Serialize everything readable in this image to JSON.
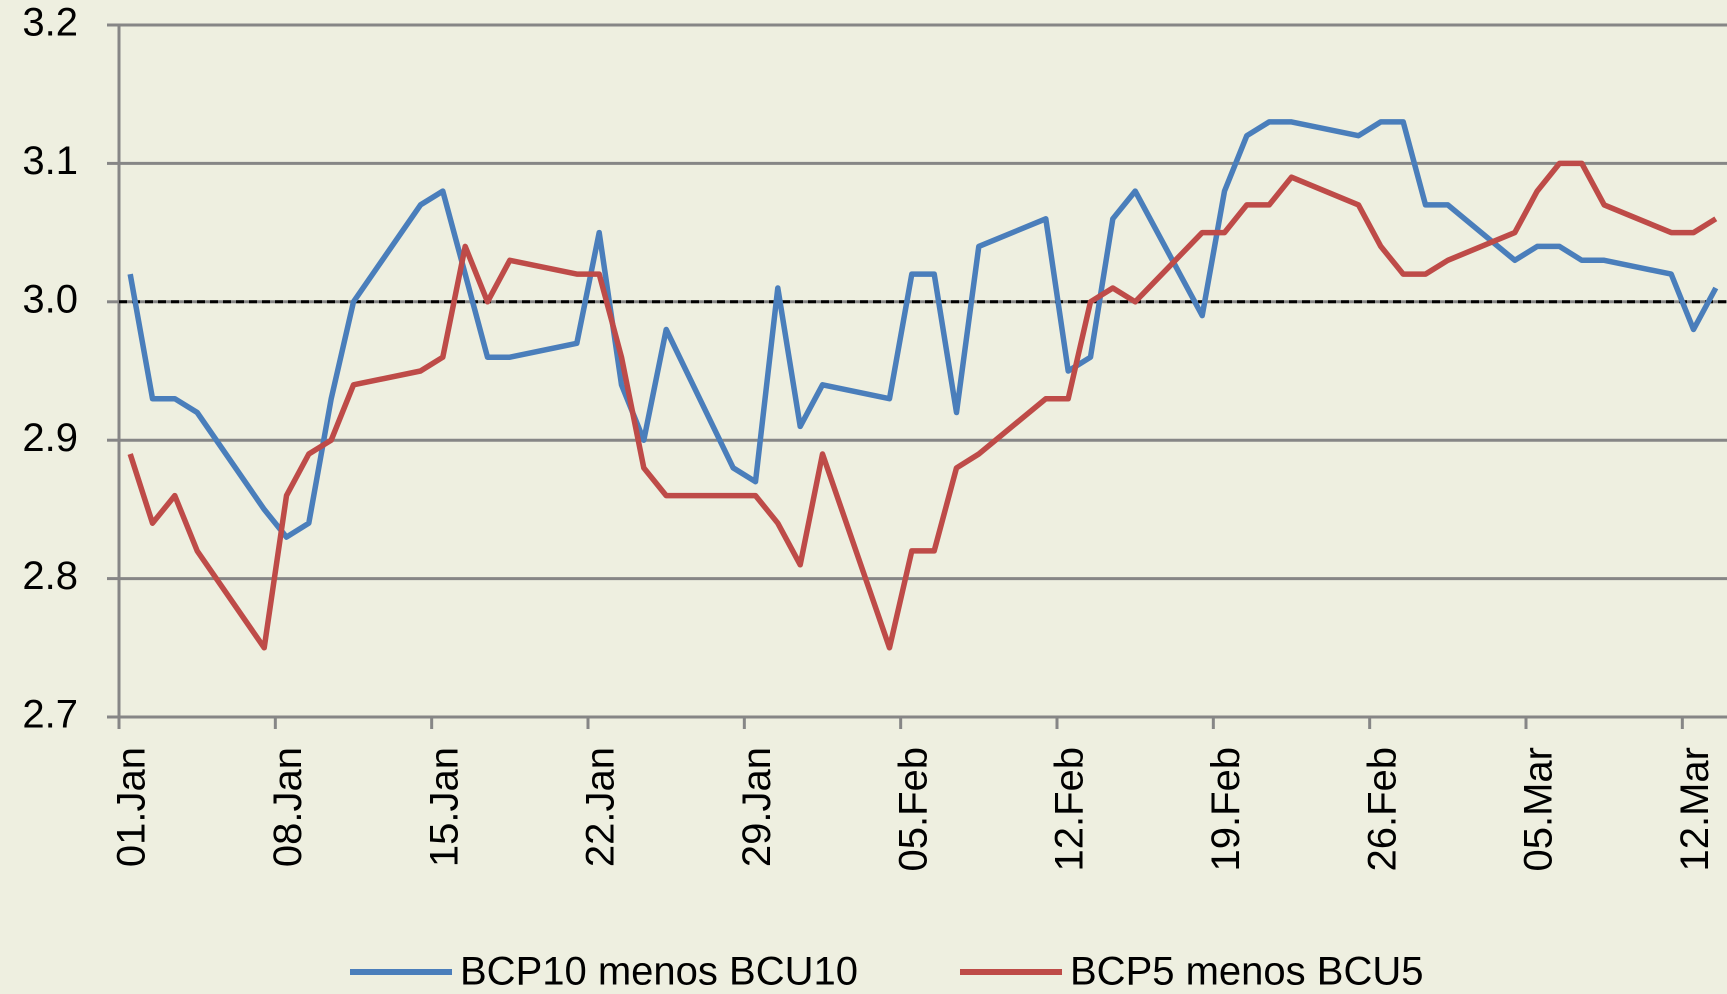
{
  "chart_data": {
    "type": "line",
    "x": [
      "01.Jan",
      "02.Jan",
      "03.Jan",
      "04.Jan",
      "07.Jan",
      "08.Jan",
      "09.Jan",
      "10.Jan",
      "11.Jan",
      "14.Jan",
      "15.Jan",
      "16.Jan",
      "17.Jan",
      "18.Jan",
      "21.Jan",
      "22.Jan",
      "23.Jan",
      "24.Jan",
      "25.Jan",
      "28.Jan",
      "29.Jan",
      "30.Jan",
      "31.Jan",
      "01.Feb",
      "04.Feb",
      "05.Feb",
      "06.Feb",
      "07.Feb",
      "08.Feb",
      "11.Feb",
      "12.Feb",
      "13.Feb",
      "14.Feb",
      "15.Feb",
      "18.Feb",
      "19.Feb",
      "20.Feb",
      "21.Feb",
      "22.Feb",
      "25.Feb",
      "26.Feb",
      "27.Feb",
      "28.Feb",
      "01.Mar",
      "04.Mar",
      "05.Mar",
      "06.Mar",
      "07.Mar",
      "08.Mar",
      "11.Mar",
      "12.Mar",
      "13.Mar"
    ],
    "series": [
      {
        "name": "BCP10 menos BCU10",
        "color": "#4a7ebb",
        "values": [
          3.02,
          2.93,
          2.93,
          2.92,
          2.85,
          2.83,
          2.84,
          2.93,
          3.0,
          3.07,
          3.08,
          3.02,
          2.96,
          2.96,
          2.97,
          3.05,
          2.94,
          2.9,
          2.98,
          2.88,
          2.87,
          3.01,
          2.91,
          2.94,
          2.93,
          3.02,
          3.02,
          2.92,
          3.04,
          3.06,
          2.95,
          2.96,
          3.06,
          3.08,
          2.99,
          3.08,
          3.12,
          3.13,
          3.13,
          3.12,
          3.13,
          3.13,
          3.07,
          3.07,
          3.03,
          3.04,
          3.04,
          3.03,
          3.03,
          3.02,
          2.98,
          3.01
        ]
      },
      {
        "name": "BCP5 menos BCU5",
        "color": "#be4b48",
        "values": [
          2.89,
          2.84,
          2.86,
          2.82,
          2.75,
          2.86,
          2.89,
          2.9,
          2.94,
          2.95,
          2.96,
          3.04,
          3.0,
          3.03,
          3.02,
          3.02,
          2.96,
          2.88,
          2.86,
          2.86,
          2.86,
          2.84,
          2.81,
          2.89,
          2.75,
          2.82,
          2.82,
          2.88,
          2.89,
          2.93,
          2.93,
          3.0,
          3.01,
          3.0,
          3.05,
          3.05,
          3.07,
          3.07,
          3.09,
          3.07,
          3.04,
          3.02,
          3.02,
          3.03,
          3.05,
          3.08,
          3.1,
          3.1,
          3.07,
          3.05,
          3.05,
          3.06
        ]
      }
    ],
    "xlim": [
      "01.Jan",
      "13.Mar"
    ],
    "xticks": [
      "01.Jan",
      "08.Jan",
      "15.Jan",
      "22.Jan",
      "29.Jan",
      "05.Feb",
      "12.Feb",
      "19.Feb",
      "26.Feb",
      "05.Mar",
      "12.Mar"
    ],
    "ylim": [
      2.7,
      3.2
    ],
    "yticks": [
      2.7,
      2.8,
      2.9,
      {
        "value": 3,
        "label": "3.0"
      },
      3.1,
      3.2
    ],
    "grid": true,
    "reference_line": 3,
    "legend": "bottom"
  }
}
